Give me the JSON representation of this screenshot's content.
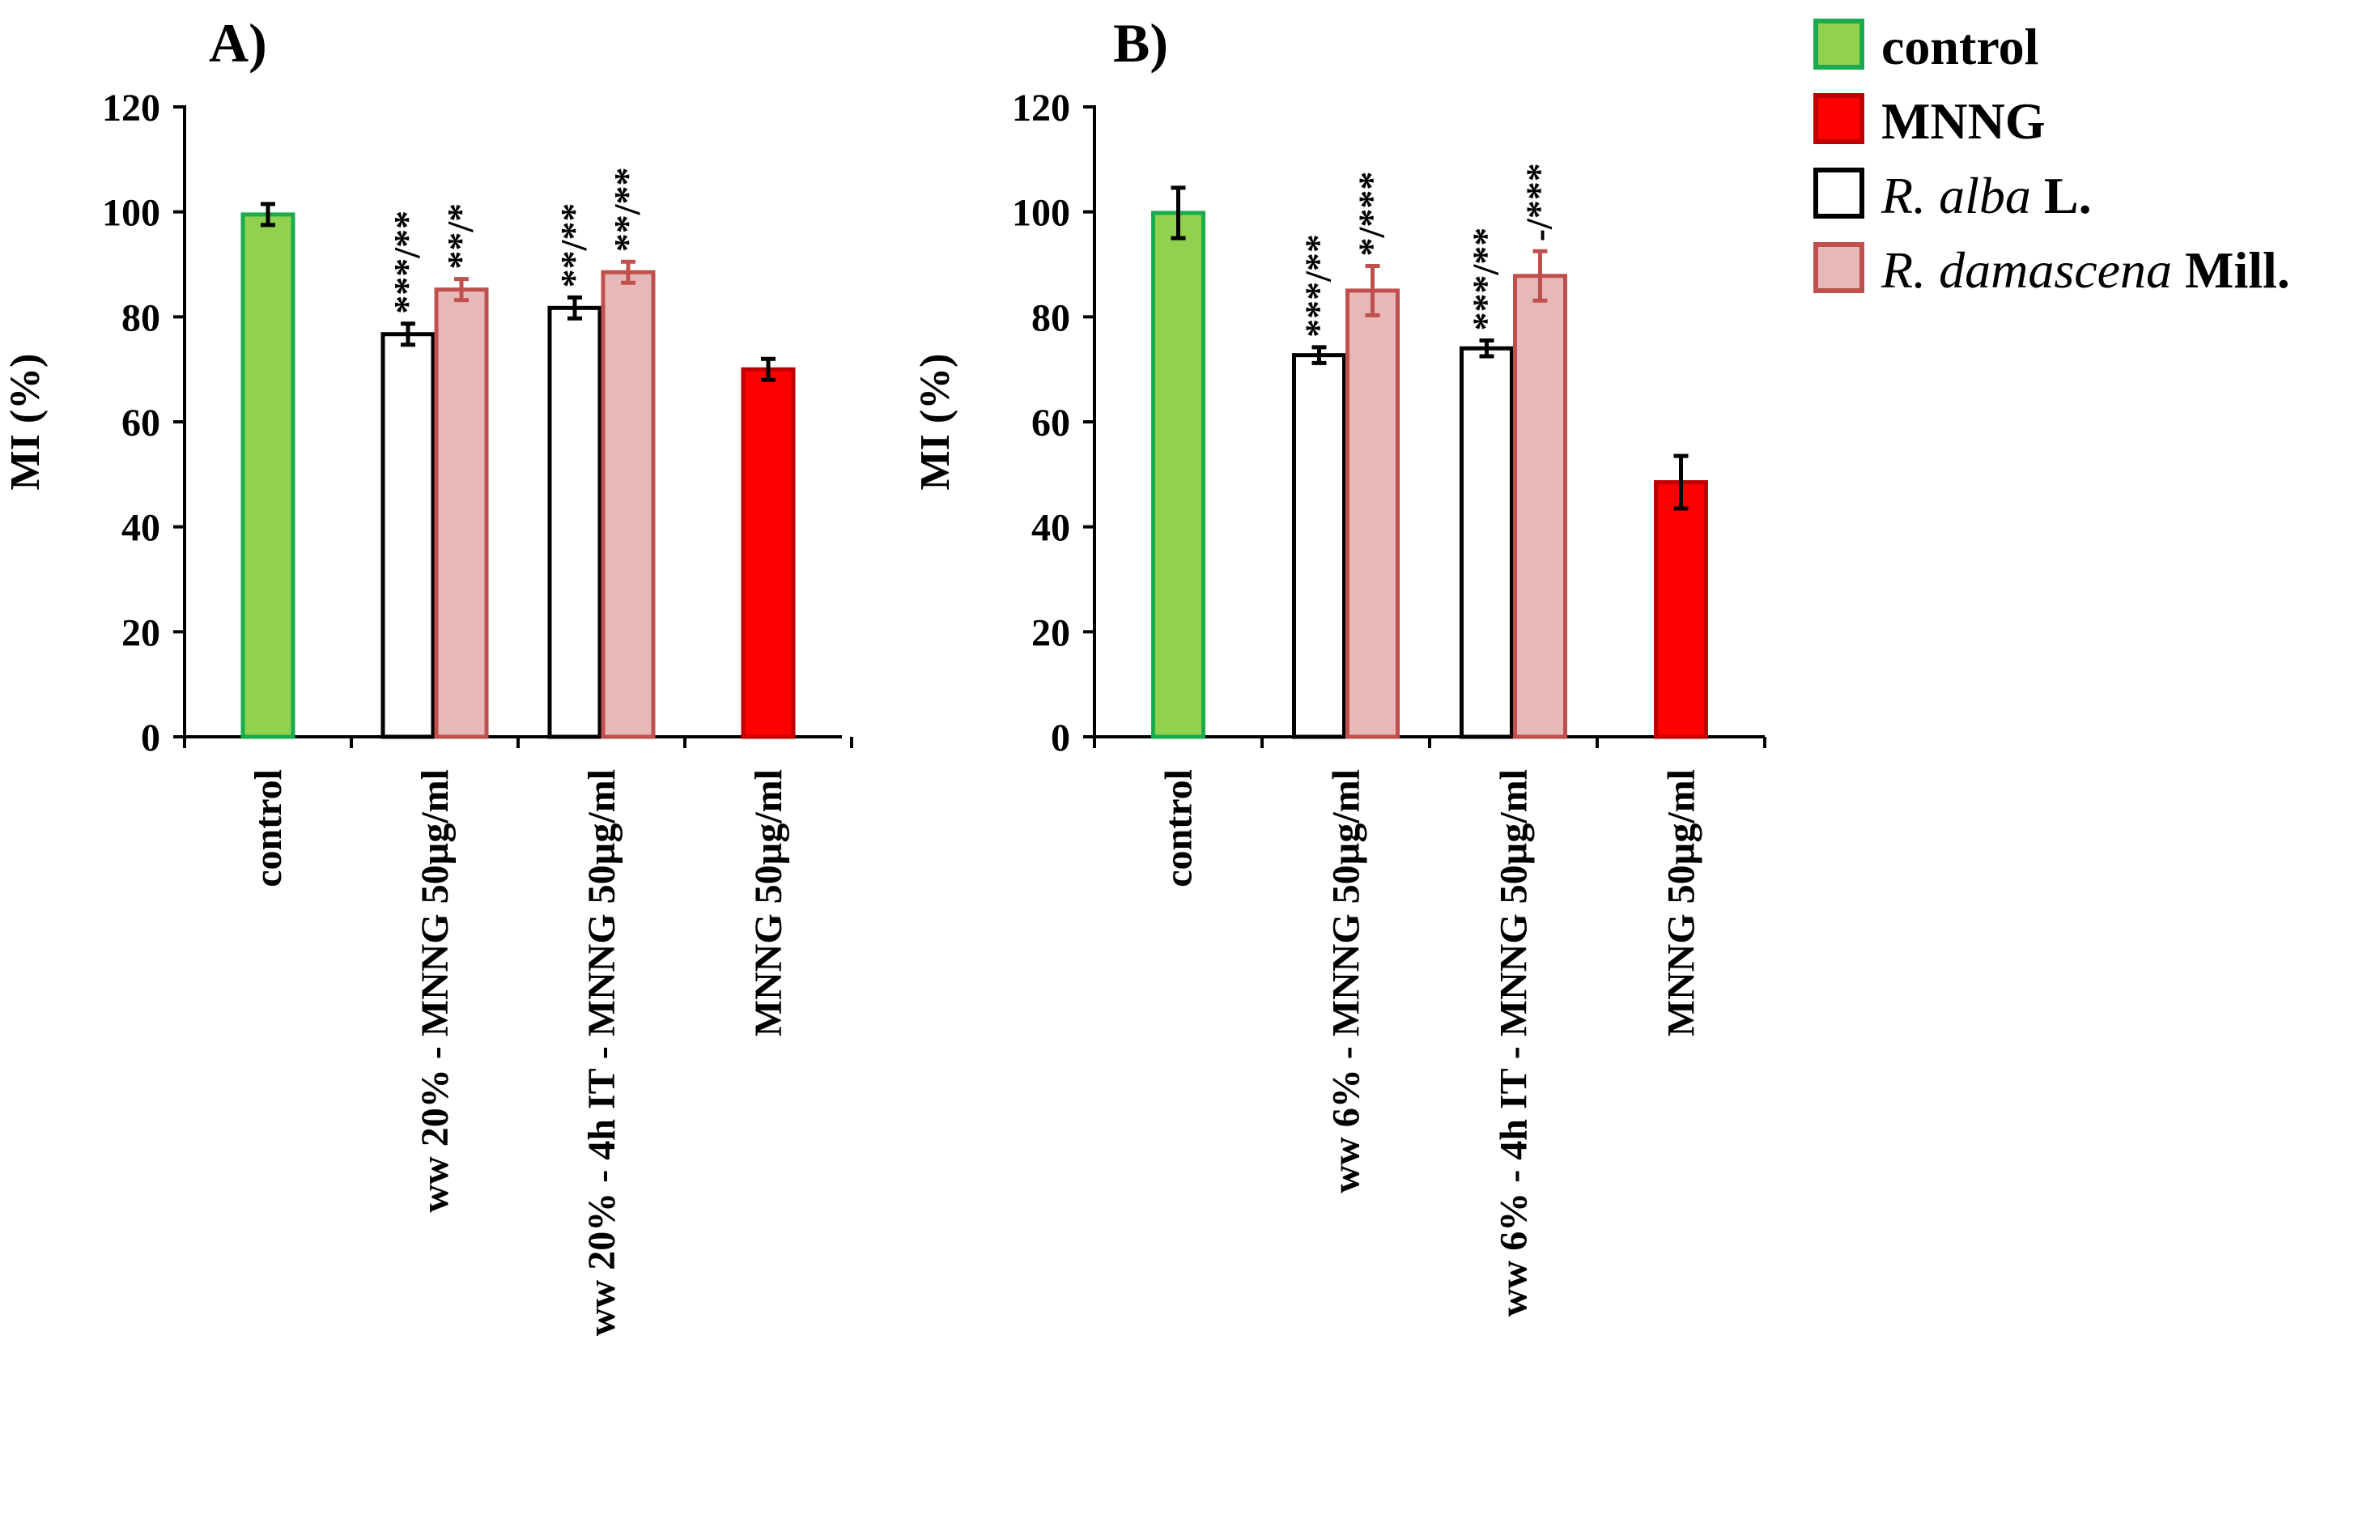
{
  "chart_data": [
    {
      "type": "bar",
      "panel_label": "A)",
      "ylabel": "MI (%)",
      "ylim": [
        0,
        120
      ],
      "yticks": [
        0,
        20,
        40,
        60,
        80,
        100,
        120
      ],
      "categories": [
        "control",
        "ww 20% - MNNG 50µg/ml",
        "ww 20% - 4h IT - MNNG 50µg/ml",
        "MNNG 50µg/ml"
      ],
      "bars": [
        {
          "category": 0,
          "series": "control",
          "value": 99.5,
          "error": 2
        },
        {
          "category": 1,
          "series": "R. alba L.",
          "value": 76.7,
          "error": 2,
          "annotation": "***/**"
        },
        {
          "category": 1,
          "series": "R. damascena Mill.",
          "value": 85.2,
          "error": 2,
          "annotation": "**/*"
        },
        {
          "category": 2,
          "series": "R. alba L.",
          "value": 81.7,
          "error": 2,
          "annotation": "**/**"
        },
        {
          "category": 2,
          "series": "R. damascena Mill.",
          "value": 88.5,
          "error": 2,
          "annotation": "**/**"
        },
        {
          "category": 3,
          "series": "MNNG",
          "value": 70,
          "error": 2
        }
      ]
    },
    {
      "type": "bar",
      "panel_label": "B)",
      "ylabel": "MI (%)",
      "ylim": [
        0,
        120
      ],
      "yticks": [
        0,
        20,
        40,
        60,
        80,
        100,
        120
      ],
      "categories": [
        "control",
        "ww 6% - MNNG 50µg/ml",
        "ww 6% - 4h IT - MNNG 50µg/ml",
        "MNNG 50µg/ml"
      ],
      "bars": [
        {
          "category": 0,
          "series": "control",
          "value": 99.8,
          "error": 4.8
        },
        {
          "category": 1,
          "series": "R. alba L.",
          "value": 72.7,
          "error": 1.5,
          "annotation": "***/**"
        },
        {
          "category": 1,
          "series": "R. damascena Mill.",
          "value": 85,
          "error": 4.7,
          "annotation": "*/***"
        },
        {
          "category": 2,
          "series": "R. alba L.",
          "value": 74,
          "error": 1.5,
          "annotation": "***/**"
        },
        {
          "category": 2,
          "series": "R. damascena Mill.",
          "value": 87.8,
          "error": 4.7,
          "annotation": "-/***"
        },
        {
          "category": 3,
          "series": "MNNG",
          "value": 48.5,
          "error": 5
        }
      ]
    }
  ],
  "legend": [
    {
      "name": "control",
      "name_main": "control",
      "name_rest": "",
      "fill": "#92d050",
      "stroke": "#1aab4f"
    },
    {
      "name": "MNNG",
      "name_main": "MNNG",
      "name_rest": "",
      "fill": "#ff0000",
      "stroke": "#c00000"
    },
    {
      "name": "R. alba L.",
      "name_main": "R. alba",
      "name_rest": " L.",
      "fill": "#ffffff",
      "stroke": "#000000"
    },
    {
      "name": "R. damascena Mill.",
      "name_main": "R. damascena",
      "name_rest": " Mill.",
      "fill": "#e6b9b8",
      "stroke": "#c0504d"
    }
  ]
}
